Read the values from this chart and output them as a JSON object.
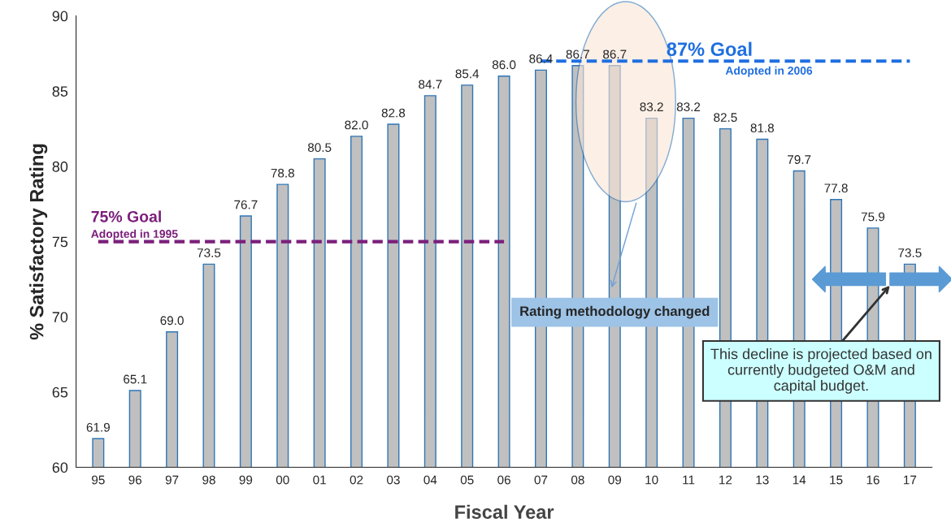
{
  "chart_data": {
    "type": "bar",
    "xlabel": "Fiscal Year",
    "ylabel": "% Satisfactory Rating",
    "categories": [
      "95",
      "96",
      "97",
      "98",
      "99",
      "00",
      "01",
      "02",
      "03",
      "04",
      "05",
      "06",
      "07",
      "08",
      "09",
      "10",
      "11",
      "12",
      "13",
      "14",
      "15",
      "16",
      "17"
    ],
    "series": [
      {
        "color": "#c0c0c0",
        "values": [
          61.9,
          65.1,
          69.0,
          73.5,
          76.7,
          78.8,
          80.5,
          82.0,
          82.8,
          84.7,
          85.4,
          86.0,
          86.4,
          86.7,
          86.7,
          83.2,
          83.2,
          82.5,
          81.8,
          79.7,
          77.8,
          75.9,
          73.5
        ],
        "value_labels": [
          "61.9",
          "65.1",
          "69.0",
          "73.5",
          "76.7",
          "78.8",
          "80.5",
          "82.0",
          "82.8",
          "84.7",
          "85.4",
          "86.0",
          "86.4",
          "86.7",
          "86.7",
          "83.2",
          "83.2",
          "82.5",
          "81.8",
          "79.7",
          "77.8",
          "75.9",
          "73.5"
        ]
      },
      {
        "type": "line",
        "name": "75% Goal",
        "color": "#7b1f7b",
        "line_style": "dashed",
        "values": [
          75,
          75,
          75,
          75,
          75,
          75,
          75,
          75,
          75,
          75,
          75,
          75,
          null,
          null,
          null,
          null,
          null,
          null,
          null,
          null,
          null,
          null,
          null
        ]
      },
      {
        "type": "line",
        "name": "87% Goal",
        "color": "#1f6fe0",
        "line_style": "dashed",
        "values": [
          null,
          null,
          null,
          null,
          null,
          null,
          null,
          null,
          null,
          null,
          null,
          null,
          87,
          87,
          87,
          87,
          87,
          87,
          87,
          87,
          87,
          87,
          87
        ]
      }
    ],
    "ylim": [
      60,
      90
    ],
    "yticks": [
      60,
      65,
      70,
      75,
      80,
      85,
      90
    ],
    "grid": false,
    "legend": false,
    "marker": "none",
    "annotations": [
      {
        "text": "Adopted in 1995",
        "x": "95",
        "y": 75
      },
      {
        "text": "Adopted in 2006",
        "x": "12",
        "y": 87
      },
      "Rating methodology changed",
      "This decline is projected based on\ncurrently budgeted O&M and\ncapital budget."
    ]
  }
}
